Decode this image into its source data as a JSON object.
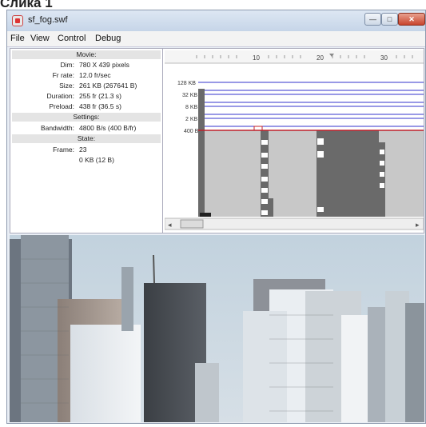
{
  "caption": "Слика 1",
  "window": {
    "title": "sf_fog.swf",
    "min_glyph": "—",
    "max_glyph": "□",
    "close_glyph": "✕"
  },
  "menu": [
    "File",
    "View",
    "Control",
    "Debug"
  ],
  "info": {
    "movie_header": "Movie:",
    "dim_label": "Dim:",
    "dim_value": "780 X 439 pixels",
    "frrate_label": "Fr rate:",
    "frrate_value": "12.0 fr/sec",
    "size_label": "Size:",
    "size_value": "261 KB (267641 B)",
    "duration_label": "Duration:",
    "duration_value": "255 fr (21.3 s)",
    "preload_label": "Preload:",
    "preload_value": "438 fr (36.5 s)",
    "settings_header": "Settings:",
    "bandwidth_label": "Bandwidth:",
    "bandwidth_value": "4800 B/s (400 B/fr)",
    "state_header": "State:",
    "frame_label": "Frame:",
    "frame_value": "23",
    "frame_size_value": "0 KB (12 B)"
  },
  "graph": {
    "ruler_ticks": [
      "10",
      "20",
      "30"
    ],
    "y_labels": [
      "128 KB",
      "32 KB",
      "8 KB",
      "2 KB",
      "400 B"
    ],
    "scroll_left": "◂",
    "scroll_right": "▸"
  },
  "colors": {
    "bandwidth_line": "#c0202a",
    "guide_lines": "#3333cc",
    "bars": "#6a6a6a",
    "fill": "#c8c8c8"
  }
}
